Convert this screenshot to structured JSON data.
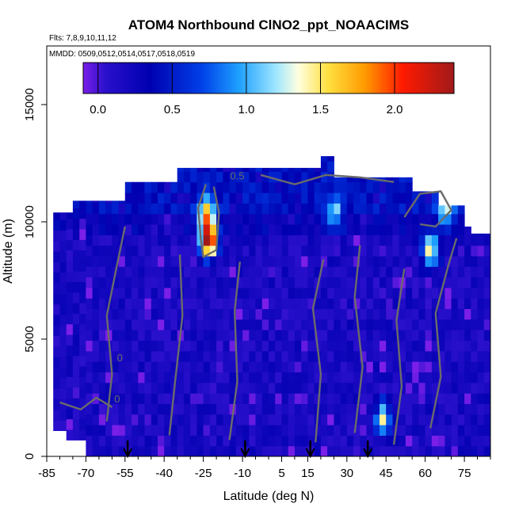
{
  "chart_data": {
    "type": "heatmap",
    "title": "ATOM4 Northbound ClNO2_ppt_NOAACIMS",
    "flights_note": "Flts: 7,8,9,10,11,12",
    "dates_note": "MMDD: 0509,0512,0514,0517,0518,0519",
    "xlabel": "Latitude (deg N)",
    "ylabel": "Altitude (m)",
    "xlim": [
      -85,
      85
    ],
    "ylim": [
      0,
      17500
    ],
    "x_tick_labels": [
      "-85",
      "-70",
      "-55",
      "-40",
      "-25",
      "-10",
      "5",
      "15",
      "30",
      "45",
      "60",
      "75"
    ],
    "x_ticks": [
      -85,
      -70,
      -55,
      -40,
      -25,
      -10,
      5,
      15,
      30,
      45,
      60,
      75
    ],
    "y_tick_labels": [
      "0",
      "5000",
      "10000",
      "15000"
    ],
    "y_ticks": [
      0,
      5000,
      10000,
      15000
    ],
    "colorbar": {
      "min": -0.1,
      "max": 2.4,
      "tick_labels": [
        "0.0",
        "0.5",
        "1.0",
        "1.5",
        "2.0"
      ],
      "ticks": [
        0.0,
        0.5,
        1.0,
        1.5,
        2.0
      ]
    },
    "contour_labels": [
      {
        "text": "0.5",
        "lat": -12,
        "alt": 11800
      },
      {
        "text": "0",
        "lat": -57,
        "alt": 4050
      },
      {
        "text": "0",
        "lat": -58,
        "alt": 2300
      }
    ],
    "arrow_latitudes": [
      -54,
      -9,
      16,
      38
    ],
    "hotspots": [
      {
        "lat": -23,
        "alt": 9200,
        "value": 2.2
      },
      {
        "lat": -24,
        "alt": 10300,
        "value": 1.3
      },
      {
        "lat": 62,
        "alt": 8800,
        "value": 1.4
      },
      {
        "lat": 44,
        "alt": 1700,
        "value": 1.2
      },
      {
        "lat": 68,
        "alt": 10400,
        "value": 1.0
      },
      {
        "lat": 25,
        "alt": 10300,
        "value": 0.8
      }
    ]
  }
}
